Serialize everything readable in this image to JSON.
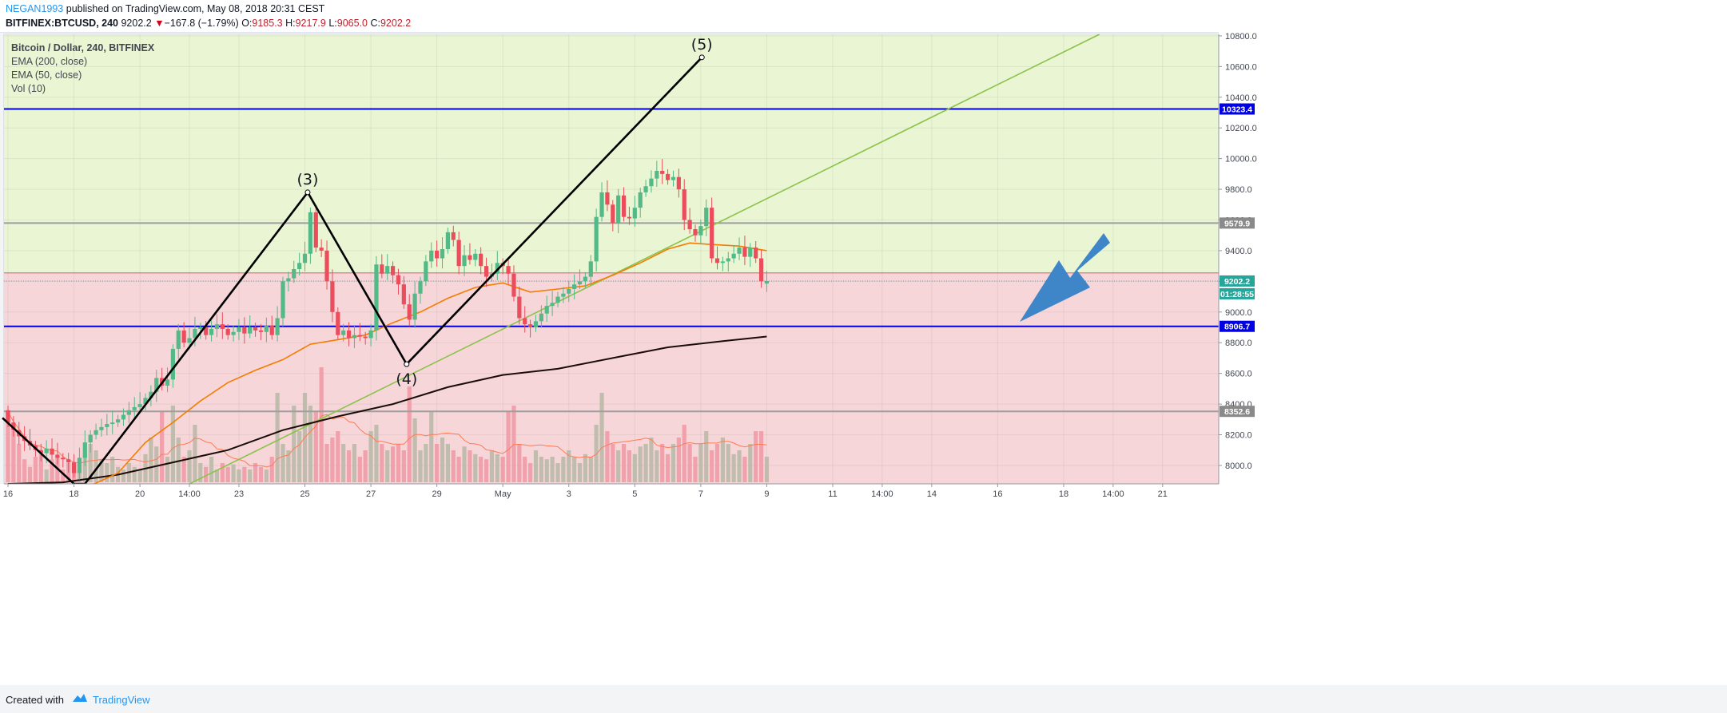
{
  "header": {
    "author": "NEGAN1993",
    "published": " published on TradingView.com, May 08, 2018 20:31 CEST",
    "symbol": "BITFINEX:BTCUSD, 240",
    "last": "9202.2",
    "change_arrow": "▼",
    "change": "−167.8 (−1.79%)",
    "o_label": "O:",
    "o": "9185.3",
    "h_label": "H:",
    "h": "9217.9",
    "l_label": "L:",
    "l": "9065.0",
    "c_label": "C:",
    "c": "9202.2"
  },
  "legend": [
    "Bitcoin / Dollar, 240, BITFINEX",
    "EMA (200, close)",
    "EMA (50, close)",
    "Vol (10)"
  ],
  "footer": {
    "created_with": "Created with",
    "brand": "TradingView"
  },
  "colors": {
    "up_candle": "#53b987",
    "down_candle": "#eb4d5c",
    "upper_zone": "#e9f5d3",
    "lower_zone": "#f6d6d9",
    "level_line": "#0000e0",
    "gray_line": "#9e9e9e",
    "ema50": "#f57c00",
    "ema200": "#1a0d08",
    "trendline": "#8bc34a",
    "arrow": "#3f86c9",
    "vol_up": "#b7b8a6",
    "vol_down": "#ee98a3"
  },
  "chart_data": {
    "type": "candlestick",
    "title": "Bitcoin / Dollar, 240, BITFINEX",
    "ylim": [
      7880,
      10810
    ],
    "yticks": [
      8000,
      8200,
      8400,
      8600,
      8800,
      9000,
      9200,
      9400,
      9600,
      9800,
      10000,
      10200,
      10400,
      10600,
      10800
    ],
    "ytick_labels": [
      "8000.0",
      "8200.0",
      "8400.0",
      "8600.0",
      "8800.0",
      "9000.0",
      "9200.0",
      "9400.0",
      "9600.0",
      "9800.0",
      "10000.0",
      "10200.0",
      "10400.0",
      "10600.0",
      "10800.0"
    ],
    "xticks": [
      {
        "label": "16",
        "t": 0
      },
      {
        "label": "18",
        "t": 12
      },
      {
        "label": "20",
        "t": 24
      },
      {
        "label": "14:00",
        "t": 33
      },
      {
        "label": "23",
        "t": 42
      },
      {
        "label": "25",
        "t": 54
      },
      {
        "label": "27",
        "t": 66
      },
      {
        "label": "29",
        "t": 78
      },
      {
        "label": "May",
        "t": 90
      },
      {
        "label": "3",
        "t": 102
      },
      {
        "label": "5",
        "t": 114
      },
      {
        "label": "7",
        "t": 126
      },
      {
        "label": "9",
        "t": 138
      },
      {
        "label": "11",
        "t": 150
      },
      {
        "label": "14:00",
        "t": 159
      },
      {
        "label": "14",
        "t": 168
      },
      {
        "label": "16",
        "t": 180
      },
      {
        "label": "18",
        "t": 192
      },
      {
        "label": "14:00",
        "t": 201
      },
      {
        "label": "21",
        "t": 210
      }
    ],
    "x_max": 219,
    "closes": [
      8280,
      8230,
      8190,
      8160,
      8130,
      8100,
      8080,
      8110,
      8070,
      8050,
      8040,
      8020,
      7950,
      8050,
      8150,
      8200,
      8230,
      8250,
      8270,
      8280,
      8300,
      8330,
      8360,
      8380,
      8400,
      8440,
      8480,
      8570,
      8520,
      8560,
      8760,
      8880,
      8800,
      8830,
      8890,
      8900,
      8850,
      8890,
      8920,
      8890,
      8850,
      8870,
      8900,
      8860,
      8900,
      8880,
      8870,
      8910,
      8850,
      8960,
      9200,
      9220,
      9280,
      9320,
      9380,
      9650,
      9420,
      9400,
      9200,
      9000,
      8850,
      8880,
      8830,
      8850,
      8840,
      8830,
      8880,
      9310,
      9250,
      9300,
      9240,
      9180,
      9050,
      8950,
      9120,
      9200,
      9330,
      9400,
      9350,
      9410,
      9520,
      9470,
      9300,
      9370,
      9340,
      9380,
      9300,
      9230,
      9250,
      9320,
      9300,
      9250,
      9100,
      8960,
      8920,
      8900,
      8940,
      8990,
      9040,
      9060,
      9100,
      9120,
      9150,
      9180,
      9200,
      9230,
      9330,
      9620,
      9780,
      9700,
      9580,
      9760,
      9620,
      9610,
      9680,
      9780,
      9820,
      9870,
      9920,
      9900,
      9860,
      9880,
      9800,
      9600,
      9540,
      9500,
      9560,
      9680,
      9350,
      9320,
      9330,
      9350,
      9380,
      9420,
      9360,
      9420,
      9350,
      9200,
      9202.2
    ],
    "opens": [
      8360,
      8280,
      8230,
      8190,
      8160,
      8130,
      8100,
      8080,
      8110,
      8070,
      8050,
      8040,
      8020,
      7950,
      8050,
      8150,
      8200,
      8230,
      8250,
      8270,
      8280,
      8300,
      8330,
      8360,
      8380,
      8400,
      8440,
      8480,
      8570,
      8520,
      8560,
      8760,
      8880,
      8800,
      8830,
      8890,
      8900,
      8850,
      8890,
      8920,
      8890,
      8850,
      8870,
      8900,
      8860,
      8900,
      8880,
      8870,
      8910,
      8850,
      8960,
      9200,
      9220,
      9280,
      9320,
      9380,
      9650,
      9420,
      9400,
      9200,
      9000,
      8850,
      8880,
      8830,
      8850,
      8840,
      8830,
      8880,
      9310,
      9250,
      9300,
      9240,
      9180,
      9050,
      8950,
      9120,
      9200,
      9330,
      9400,
      9350,
      9410,
      9520,
      9470,
      9300,
      9370,
      9340,
      9380,
      9300,
      9230,
      9250,
      9320,
      9300,
      9250,
      9100,
      8960,
      8920,
      8900,
      8940,
      8990,
      9040,
      9060,
      9100,
      9120,
      9150,
      9180,
      9200,
      9230,
      9330,
      9620,
      9780,
      9700,
      9580,
      9760,
      9620,
      9610,
      9680,
      9780,
      9820,
      9870,
      9920,
      9900,
      9860,
      9880,
      9800,
      9600,
      9540,
      9500,
      9560,
      9680,
      9350,
      9320,
      9330,
      9350,
      9380,
      9420,
      9360,
      9420,
      9350,
      9185.3
    ],
    "volume": [
      0.55,
      0.4,
      0.3,
      0.18,
      0.12,
      0.2,
      0.22,
      0.1,
      0.18,
      0.2,
      0.1,
      0.15,
      0.12,
      0.1,
      0.22,
      0.3,
      0.25,
      0.18,
      0.15,
      0.2,
      0.12,
      0.1,
      0.15,
      0.12,
      0.1,
      0.22,
      0.35,
      0.28,
      0.55,
      0.2,
      0.6,
      0.35,
      0.2,
      0.25,
      0.45,
      0.15,
      0.12,
      0.2,
      0.1,
      0.15,
      0.12,
      0.14,
      0.1,
      0.12,
      0.1,
      0.15,
      0.12,
      0.1,
      0.2,
      0.7,
      0.3,
      0.25,
      0.6,
      0.4,
      0.7,
      0.6,
      0.55,
      0.9,
      0.3,
      0.35,
      0.4,
      0.3,
      0.25,
      0.3,
      0.2,
      0.25,
      0.4,
      0.45,
      0.3,
      0.25,
      0.28,
      0.3,
      0.25,
      0.75,
      0.5,
      0.25,
      0.3,
      0.55,
      0.3,
      0.35,
      0.3,
      0.25,
      0.2,
      0.28,
      0.25,
      0.22,
      0.2,
      0.18,
      0.25,
      0.22,
      0.2,
      0.55,
      0.6,
      0.3,
      0.2,
      0.15,
      0.25,
      0.2,
      0.18,
      0.2,
      0.15,
      0.2,
      0.25,
      0.2,
      0.15,
      0.22,
      0.2,
      0.45,
      0.7,
      0.4,
      0.3,
      0.25,
      0.3,
      0.25,
      0.22,
      0.28,
      0.3,
      0.35,
      0.25,
      0.3,
      0.22,
      0.3,
      0.35,
      0.45,
      0.3,
      0.2,
      0.3,
      0.4,
      0.25,
      0.3,
      0.35,
      0.3,
      0.22,
      0.25,
      0.2,
      0.3,
      0.4,
      0.4,
      0.2
    ],
    "ema50": [
      [
        12,
        7820
      ],
      [
        20,
        7950
      ],
      [
        25,
        8150
      ],
      [
        30,
        8280
      ],
      [
        35,
        8420
      ],
      [
        40,
        8540
      ],
      [
        45,
        8620
      ],
      [
        50,
        8690
      ],
      [
        52,
        8730
      ],
      [
        55,
        8790
      ],
      [
        60,
        8820
      ],
      [
        65,
        8850
      ],
      [
        70,
        8930
      ],
      [
        75,
        9000
      ],
      [
        80,
        9090
      ],
      [
        85,
        9160
      ],
      [
        90,
        9190
      ],
      [
        95,
        9130
      ],
      [
        100,
        9150
      ],
      [
        105,
        9170
      ],
      [
        110,
        9240
      ],
      [
        115,
        9320
      ],
      [
        120,
        9410
      ],
      [
        124,
        9450
      ],
      [
        128,
        9440
      ],
      [
        133,
        9430
      ],
      [
        138,
        9400
      ]
    ],
    "ema200": [
      [
        0,
        7880
      ],
      [
        10,
        7890
      ],
      [
        20,
        7940
      ],
      [
        30,
        8020
      ],
      [
        40,
        8100
      ],
      [
        50,
        8230
      ],
      [
        60,
        8320
      ],
      [
        70,
        8400
      ],
      [
        80,
        8510
      ],
      [
        90,
        8590
      ],
      [
        100,
        8630
      ],
      [
        110,
        8700
      ],
      [
        120,
        8770
      ],
      [
        130,
        8810
      ],
      [
        138,
        8840
      ]
    ],
    "levels": [
      {
        "price": 10323.4,
        "label": "10323.4",
        "style": "blue"
      },
      {
        "price": 9579.9,
        "label": "9579.9",
        "style": "gray"
      },
      {
        "price": 9202.2,
        "label": "9202.2",
        "style": "last"
      },
      {
        "price": 8906.7,
        "label": "8906.7",
        "style": "blue"
      },
      {
        "price": 8352.6,
        "label": "8352.6",
        "style": "gray"
      }
    ],
    "countdown": "01:28:55",
    "zone_split": 9255,
    "waves": [
      {
        "label": "(3)",
        "t": 54.5,
        "price": 9780
      },
      {
        "label": "(4)",
        "t": 72.5,
        "price": 8660
      },
      {
        "label": "(5)",
        "t": 126.2,
        "price": 10660
      }
    ]
  }
}
